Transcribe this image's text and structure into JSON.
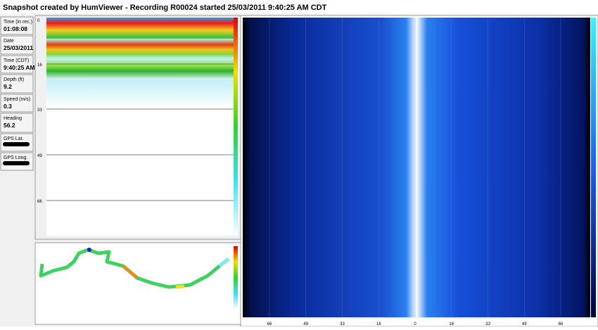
{
  "title": "Snapshot created by HumViewer - Recording R00024 started 25/03/2011 9:40:25 AM CDT",
  "info_panels": [
    {
      "label": "Time (in rec.)",
      "value": "01:08:08"
    },
    {
      "label": "Date",
      "value": "25/03/2011"
    },
    {
      "label": "Time (CDT)",
      "value": "9:40:25 AM"
    },
    {
      "label": "Depth (ft)",
      "value": "9.2"
    },
    {
      "label": "Speed (m/s)",
      "value": "0.3"
    },
    {
      "label": "Heading",
      "value": "56.2"
    },
    {
      "label": "GPS Lat."
    },
    {
      "label": "GPS Long."
    }
  ],
  "down_sonar": {
    "depth_labels": [
      0,
      16,
      33,
      49,
      66
    ]
  },
  "side_scan": {
    "range_labels": [
      66,
      49,
      33,
      16,
      0,
      16,
      33,
      49,
      66
    ]
  }
}
